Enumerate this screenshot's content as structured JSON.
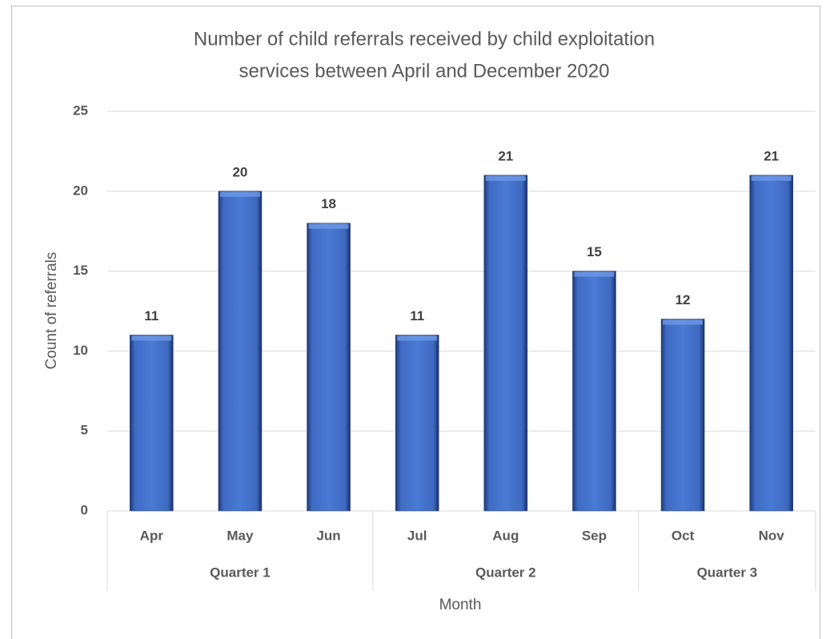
{
  "chart_data": {
    "type": "bar",
    "title": [
      "Number of child referrals received by child exploitation",
      "services between April and December 2020"
    ],
    "x_label": "Month",
    "y_label": "Count of referrals",
    "groups": [
      {
        "label": "Quarter 1",
        "categories": [
          "Apr",
          "May",
          "Jun"
        ]
      },
      {
        "label": "Quarter 2",
        "categories": [
          "Jul",
          "Aug",
          "Sep"
        ]
      },
      {
        "label": "Quarter 3",
        "categories": [
          "Oct",
          "Nov"
        ]
      }
    ],
    "values": [
      11,
      20,
      18,
      11,
      21,
      15,
      12,
      21
    ],
    "color": "#4472c4",
    "ylim": [
      0,
      25
    ],
    "yticks": [
      0,
      5,
      10,
      15,
      20,
      25
    ],
    "grid": true
  }
}
